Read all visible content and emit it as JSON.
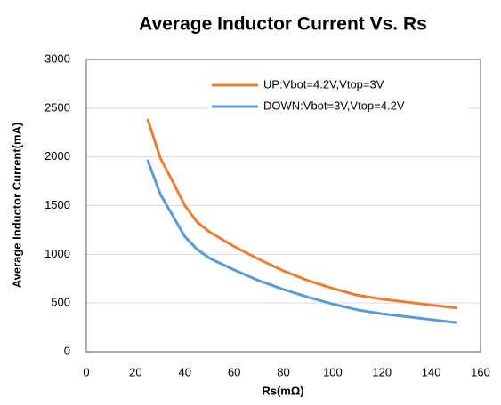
{
  "chart_data": {
    "type": "line",
    "title": "Average Inductor Current Vs. Rs",
    "x_label": "Rs(mΩ)",
    "y_label": "Average Inductor Current(mA)",
    "x": [
      25,
      30,
      35,
      40,
      45,
      50,
      60,
      70,
      80,
      90,
      100,
      110,
      120,
      130,
      140,
      150
    ],
    "series": [
      {
        "name": "UP:Vbot=4.2V,Vtop=3V",
        "color": "#ed7d31",
        "values": [
          2380,
          1990,
          1750,
          1500,
          1330,
          1230,
          1080,
          950,
          830,
          730,
          650,
          580,
          540,
          510,
          480,
          450
        ]
      },
      {
        "name": "DOWN:Vbot=3V,Vtop=4.2V",
        "color": "#5b9bd5",
        "values": [
          1960,
          1620,
          1400,
          1180,
          1050,
          960,
          840,
          730,
          640,
          560,
          490,
          430,
          390,
          360,
          330,
          300
        ]
      }
    ],
    "xlim": [
      0,
      160
    ],
    "xticks": [
      0,
      20,
      40,
      60,
      80,
      100,
      120,
      140,
      160
    ],
    "ylim": [
      0,
      3000
    ],
    "yticks": [
      0,
      500,
      1000,
      1500,
      2000,
      2500,
      3000
    ],
    "grid": true,
    "legend": "upper right"
  }
}
